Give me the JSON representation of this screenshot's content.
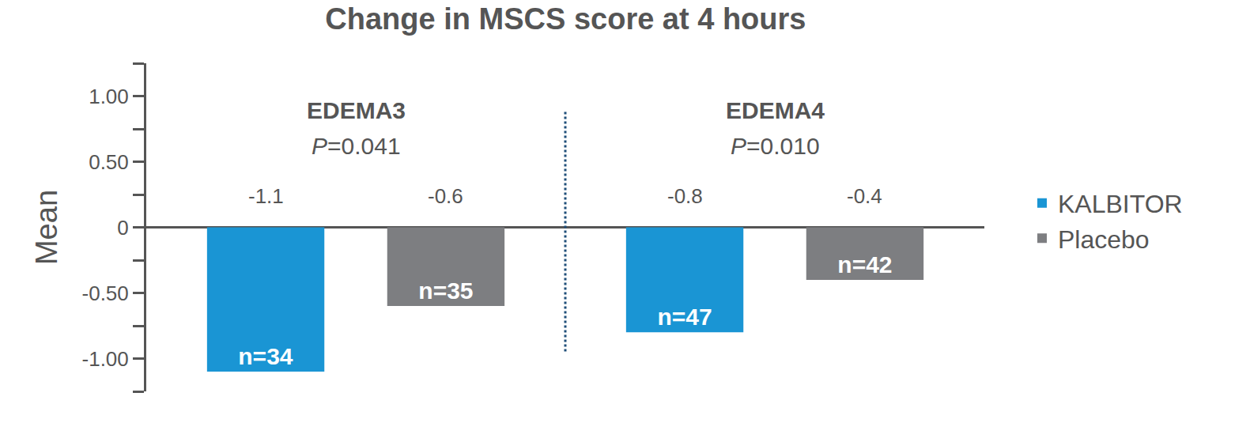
{
  "chart_data": {
    "type": "bar",
    "title": "Change in MSCS score at 4 hours",
    "y_label": "Mean",
    "categories": [
      "EDEMA3",
      "EDEMA4"
    ],
    "p_values": [
      "P=0.041",
      "P=0.010"
    ],
    "series": [
      {
        "name": "KALBITOR",
        "color": "#1a95d4",
        "values": [
          -1.1,
          -0.8
        ],
        "n_labels": [
          "n=34",
          "n=47"
        ]
      },
      {
        "name": "Placebo",
        "color": "#7d7e81",
        "values": [
          -0.6,
          -0.4
        ],
        "n_labels": [
          "n=35",
          "n=42"
        ]
      }
    ],
    "ylim": [
      -1.25,
      1.25
    ],
    "yticks": [
      {
        "value": -1,
        "label": "-1.00"
      },
      {
        "value": -0.5,
        "label": "-0.50"
      },
      0,
      {
        "value": 0.5,
        "label": "0.50"
      },
      {
        "value": 1,
        "label": "1.00"
      }
    ],
    "data_labels": true,
    "grid": false,
    "legend": "right"
  }
}
